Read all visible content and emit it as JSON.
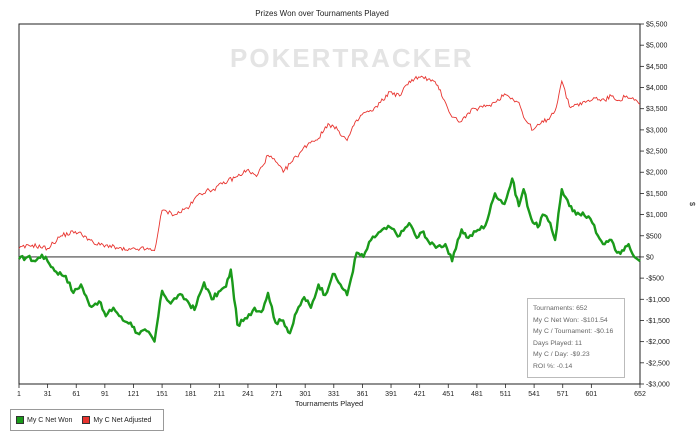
{
  "watermark": "POKERTRACKER",
  "stats": {
    "lines": [
      "Tournaments: 652",
      "My C Net Won: -$101.54",
      "My C / Tournament: -$0.16",
      "Days Played: 11",
      "My C / Day: -$9.23",
      "ROI %: -0.14"
    ]
  },
  "colors": {
    "net_won": "#1a9a1a",
    "net_adjusted": "#e8342f"
  },
  "chart_data": {
    "type": "line",
    "title": "Prizes Won over Tournaments Played",
    "xlabel": "Tournaments Played",
    "ylabel": "$",
    "xlim": [
      1,
      652
    ],
    "ylim": [
      -3000,
      5500
    ],
    "x_ticks": [
      1,
      31,
      61,
      91,
      121,
      151,
      181,
      211,
      241,
      271,
      301,
      331,
      361,
      391,
      421,
      451,
      481,
      511,
      541,
      571,
      601,
      652
    ],
    "y_ticks": [
      -3000,
      -2500,
      -2000,
      -1500,
      -1000,
      -500,
      0,
      500,
      1000,
      1500,
      2000,
      2500,
      3000,
      3500,
      4000,
      4500,
      5000,
      5500
    ],
    "y_tick_labels": [
      "-$3,000",
      "-$2,500",
      "-$2,000",
      "-$1,500",
      "-$1,000",
      "-$500",
      "$0",
      "$500",
      "$1,000",
      "$1,500",
      "$2,000",
      "$2,500",
      "$3,000",
      "$3,500",
      "$4,000",
      "$4,500",
      "$5,000",
      "$5,500"
    ],
    "grid": false,
    "legend_position": "bottom-left",
    "series": [
      {
        "name": "My C Net Won",
        "points": [
          [
            1,
            -50
          ],
          [
            10,
            0
          ],
          [
            18,
            -100
          ],
          [
            25,
            50
          ],
          [
            31,
            -100
          ],
          [
            40,
            -350
          ],
          [
            50,
            -450
          ],
          [
            58,
            -850
          ],
          [
            66,
            -650
          ],
          [
            75,
            -1150
          ],
          [
            85,
            -1050
          ],
          [
            92,
            -1400
          ],
          [
            100,
            -1200
          ],
          [
            110,
            -1500
          ],
          [
            118,
            -1550
          ],
          [
            125,
            -1800
          ],
          [
            135,
            -1750
          ],
          [
            143,
            -2000
          ],
          [
            151,
            -800
          ],
          [
            160,
            -1100
          ],
          [
            168,
            -900
          ],
          [
            176,
            -1000
          ],
          [
            185,
            -1250
          ],
          [
            195,
            -600
          ],
          [
            203,
            -1000
          ],
          [
            212,
            -800
          ],
          [
            218,
            -700
          ],
          [
            223,
            -300
          ],
          [
            230,
            -1600
          ],
          [
            240,
            -1450
          ],
          [
            248,
            -1200
          ],
          [
            255,
            -1300
          ],
          [
            262,
            -850
          ],
          [
            270,
            -1550
          ],
          [
            278,
            -1500
          ],
          [
            285,
            -1800
          ],
          [
            292,
            -1300
          ],
          [
            300,
            -950
          ],
          [
            307,
            -1200
          ],
          [
            315,
            -650
          ],
          [
            322,
            -900
          ],
          [
            330,
            -400
          ],
          [
            338,
            -650
          ],
          [
            345,
            -900
          ],
          [
            355,
            100
          ],
          [
            362,
            0
          ],
          [
            370,
            400
          ],
          [
            380,
            600
          ],
          [
            390,
            700
          ],
          [
            400,
            500
          ],
          [
            410,
            800
          ],
          [
            418,
            450
          ],
          [
            425,
            600
          ],
          [
            432,
            300
          ],
          [
            440,
            250
          ],
          [
            448,
            300
          ],
          [
            455,
            -100
          ],
          [
            465,
            650
          ],
          [
            472,
            450
          ],
          [
            480,
            600
          ],
          [
            490,
            750
          ],
          [
            500,
            1500
          ],
          [
            510,
            1250
          ],
          [
            518,
            1850
          ],
          [
            525,
            1200
          ],
          [
            530,
            1600
          ],
          [
            538,
            900
          ],
          [
            545,
            700
          ],
          [
            550,
            1000
          ],
          [
            558,
            800
          ],
          [
            563,
            400
          ],
          [
            570,
            1600
          ],
          [
            578,
            1200
          ],
          [
            585,
            1000
          ],
          [
            592,
            1050
          ],
          [
            600,
            900
          ],
          [
            608,
            500
          ],
          [
            615,
            300
          ],
          [
            622,
            400
          ],
          [
            628,
            100
          ],
          [
            635,
            150
          ],
          [
            640,
            300
          ],
          [
            646,
            0
          ],
          [
            652,
            -100
          ]
        ]
      },
      {
        "name": "My C Net Adjusted",
        "points": [
          [
            1,
            200
          ],
          [
            15,
            280
          ],
          [
            31,
            200
          ],
          [
            45,
            500
          ],
          [
            60,
            600
          ],
          [
            70,
            500
          ],
          [
            80,
            300
          ],
          [
            92,
            280
          ],
          [
            105,
            200
          ],
          [
            115,
            150
          ],
          [
            128,
            200
          ],
          [
            143,
            150
          ],
          [
            151,
            1100
          ],
          [
            165,
            1000
          ],
          [
            180,
            1200
          ],
          [
            190,
            1500
          ],
          [
            205,
            1600
          ],
          [
            220,
            1800
          ],
          [
            230,
            1900
          ],
          [
            240,
            2050
          ],
          [
            250,
            1900
          ],
          [
            262,
            2400
          ],
          [
            270,
            2250
          ],
          [
            278,
            2000
          ],
          [
            285,
            2200
          ],
          [
            295,
            2450
          ],
          [
            305,
            2700
          ],
          [
            315,
            2800
          ],
          [
            325,
            3150
          ],
          [
            335,
            3000
          ],
          [
            345,
            2750
          ],
          [
            352,
            3100
          ],
          [
            362,
            3400
          ],
          [
            372,
            3450
          ],
          [
            380,
            3650
          ],
          [
            390,
            3900
          ],
          [
            400,
            3800
          ],
          [
            410,
            4150
          ],
          [
            420,
            4250
          ],
          [
            430,
            4200
          ],
          [
            440,
            4050
          ],
          [
            447,
            3700
          ],
          [
            455,
            3300
          ],
          [
            465,
            3200
          ],
          [
            472,
            3400
          ],
          [
            480,
            3500
          ],
          [
            490,
            3550
          ],
          [
            500,
            3650
          ],
          [
            510,
            3850
          ],
          [
            518,
            3750
          ],
          [
            525,
            3650
          ],
          [
            530,
            3300
          ],
          [
            540,
            3000
          ],
          [
            548,
            3150
          ],
          [
            555,
            3250
          ],
          [
            563,
            3450
          ],
          [
            570,
            4150
          ],
          [
            578,
            3550
          ],
          [
            585,
            3600
          ],
          [
            595,
            3650
          ],
          [
            605,
            3750
          ],
          [
            615,
            3700
          ],
          [
            622,
            3800
          ],
          [
            630,
            3700
          ],
          [
            638,
            3800
          ],
          [
            646,
            3700
          ],
          [
            652,
            3600
          ]
        ]
      }
    ]
  }
}
